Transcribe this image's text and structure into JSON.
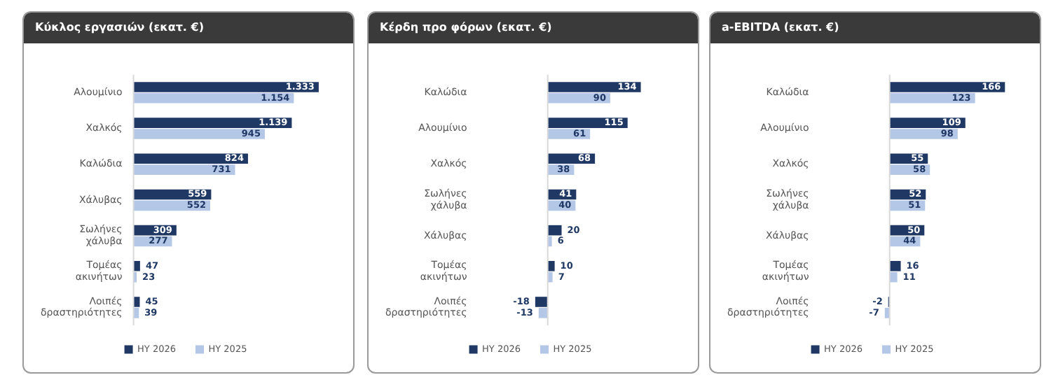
{
  "chart_data": [
    {
      "type": "bar",
      "orientation": "horizontal",
      "title": "Κύκλος εργασιών (εκατ. €)",
      "categories": [
        "Αλουμίνιο",
        "Χαλκός",
        "Καλώδια",
        "Χάλυβας",
        "Σωλήνες χάλυβα",
        "Τομέας ακινήτων",
        "Λοιπές δραστηριότητες"
      ],
      "series": [
        {
          "name": "HY 2026",
          "color": "#1f3864",
          "values": [
            1333,
            1139,
            824,
            559,
            309,
            47,
            45
          ],
          "value_labels": [
            "1.333",
            "1.139",
            "824",
            "559",
            "309",
            "47",
            "45"
          ]
        },
        {
          "name": "HY 2025",
          "color": "#b4c7e7",
          "values": [
            1154,
            945,
            731,
            552,
            277,
            23,
            39
          ],
          "value_labels": [
            "1.154",
            "945",
            "731",
            "552",
            "277",
            "23",
            "39"
          ]
        }
      ],
      "legend": "bottom"
    },
    {
      "type": "bar",
      "orientation": "horizontal",
      "title": "Κέρδη προ φόρων (εκατ. €)",
      "categories": [
        "Καλώδια",
        "Αλουμίνιο",
        "Χαλκός",
        "Σωλήνες χάλυβα",
        "Χάλυβας",
        "Τομέας ακινήτων",
        "Λοιπές δραστηριότητες"
      ],
      "series": [
        {
          "name": "HY 2026",
          "color": "#1f3864",
          "values": [
            134,
            115,
            68,
            41,
            20,
            10,
            -18
          ]
        },
        {
          "name": "HY 2025",
          "color": "#b4c7e7",
          "values": [
            90,
            61,
            38,
            40,
            6,
            7,
            -13
          ]
        }
      ],
      "data_labels": true,
      "legend": "bottom"
    },
    {
      "type": "bar",
      "orientation": "horizontal",
      "title": "a-EBITDA (εκατ. €)",
      "categories": [
        "Καλώδια",
        "Αλουμίνιο",
        "Χαλκός",
        "Σωλήνες χάλυβα",
        "Χάλυβας",
        "Τομέας ακινήτων",
        "Λοιπές δραστηριότητες"
      ],
      "series": [
        {
          "name": "HY 2026",
          "color": "#1f3864",
          "values": [
            166,
            109,
            55,
            52,
            50,
            16,
            -2
          ]
        },
        {
          "name": "HY 2025",
          "color": "#b4c7e7",
          "values": [
            123,
            98,
            58,
            51,
            44,
            11,
            -7
          ]
        }
      ],
      "data_labels": true,
      "legend": "bottom"
    }
  ]
}
